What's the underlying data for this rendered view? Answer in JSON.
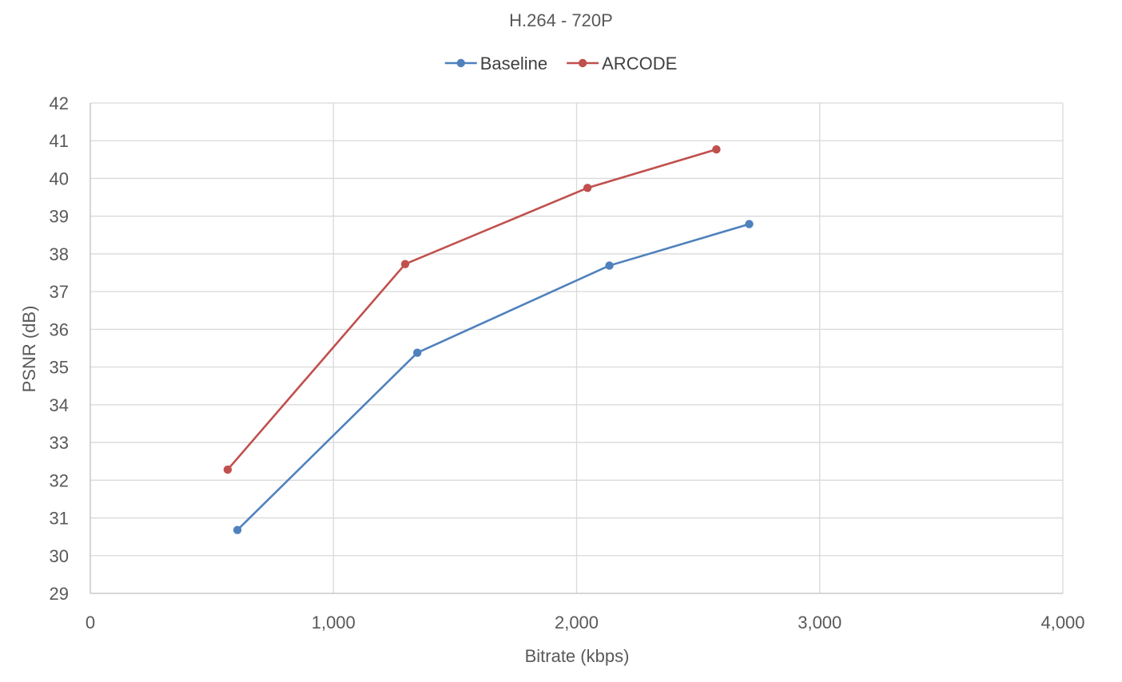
{
  "chart_data": {
    "type": "line",
    "title": "H.264 - 720P",
    "xlabel": "Bitrate (kbps)",
    "ylabel": "PSNR (dB)",
    "xlim": [
      0,
      4000
    ],
    "ylim": [
      29,
      42
    ],
    "xticks": [
      0,
      1000,
      2000,
      3000,
      4000
    ],
    "xtick_labels": [
      "0",
      "1,000",
      "2,000",
      "3,000",
      "4,000"
    ],
    "yticks": [
      29,
      30,
      31,
      32,
      33,
      34,
      35,
      36,
      37,
      38,
      39,
      40,
      41,
      42
    ],
    "ytick_labels": [
      "29",
      "30",
      "31",
      "32",
      "33",
      "34",
      "35",
      "36",
      "37",
      "38",
      "39",
      "40",
      "41",
      "42"
    ],
    "grid": true,
    "legend_position": "top-center",
    "series": [
      {
        "name": "Baseline",
        "color": "#4f81bd",
        "x": [
          605,
          1345,
          2135,
          2710
        ],
        "y": [
          30.68,
          35.38,
          37.69,
          38.79
        ]
      },
      {
        "name": "ARCODE",
        "color": "#c0504d",
        "x": [
          565,
          1295,
          2045,
          2575
        ],
        "y": [
          32.28,
          37.73,
          39.75,
          40.77
        ]
      }
    ]
  }
}
